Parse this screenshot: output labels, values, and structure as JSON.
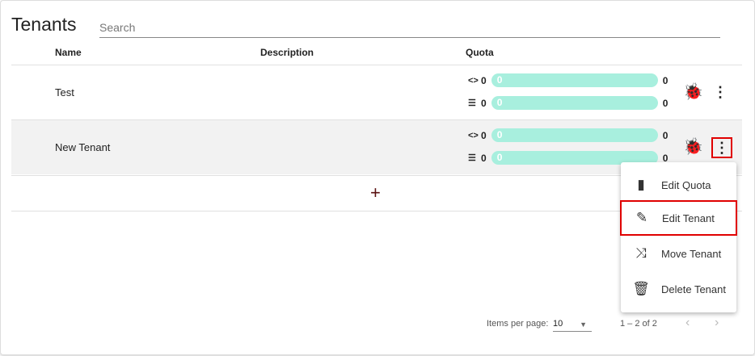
{
  "title": "Tenants",
  "search": {
    "placeholder": "Search"
  },
  "columns": [
    "Name",
    "Description",
    "Quota"
  ],
  "rows": [
    {
      "name": "Test",
      "quota": {
        "code_used": "0",
        "code_bar": "0",
        "code_max": "0",
        "list_used": "0",
        "list_bar": "0",
        "list_max": "0"
      }
    },
    {
      "name": "New Tenant",
      "quota": {
        "code_used": "0",
        "code_bar": "0",
        "code_max": "0",
        "list_used": "0",
        "list_bar": "0",
        "list_max": "0"
      }
    }
  ],
  "add_label": "+",
  "menu": [
    "Edit Quota",
    "Edit Tenant",
    "Move Tenant",
    "Delete Tenant"
  ],
  "paginator": {
    "label": "Items per page:",
    "page_size": "10",
    "range": "1 – 2 of 2"
  },
  "colors": {
    "bar": "#a8efde",
    "highlight": "#e00000"
  }
}
